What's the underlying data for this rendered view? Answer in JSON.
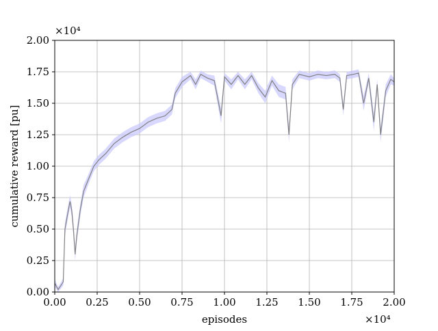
{
  "chart_data": {
    "type": "line",
    "xlabel": "episodes",
    "ylabel": "cumulative reward [pu]",
    "x_offset": "×10⁴",
    "y_offset": "×10⁴",
    "xlim": [
      0,
      20000
    ],
    "ylim": [
      0,
      20000
    ],
    "grid": true,
    "xticks": [
      {
        "value": 0,
        "label": "0.00"
      },
      {
        "value": 2500,
        "label": "0.25"
      },
      {
        "value": 5000,
        "label": "0.50"
      },
      {
        "value": 7500,
        "label": "0.75"
      },
      {
        "value": 10000,
        "label": "1.00"
      },
      {
        "value": 12500,
        "label": "1.25"
      },
      {
        "value": 15000,
        "label": "1.50"
      },
      {
        "value": 17500,
        "label": "1.75"
      },
      {
        "value": 20000,
        "label": "2.00"
      }
    ],
    "yticks": [
      {
        "value": 0,
        "label": "0.00"
      },
      {
        "value": 2500,
        "label": "0.25"
      },
      {
        "value": 5000,
        "label": "0.50"
      },
      {
        "value": 7500,
        "label": "0.75"
      },
      {
        "value": 10000,
        "label": "1.00"
      },
      {
        "value": 12500,
        "label": "1.25"
      },
      {
        "value": 15000,
        "label": "1.50"
      },
      {
        "value": 17500,
        "label": "1.75"
      },
      {
        "value": 20000,
        "label": "2.00"
      }
    ],
    "x": [
      0,
      200,
      500,
      600,
      800,
      900,
      1000,
      1100,
      1200,
      1300,
      1500,
      1700,
      2000,
      2300,
      2600,
      3000,
      3500,
      4000,
      4500,
      5000,
      5500,
      6000,
      6500,
      6900,
      7100,
      7500,
      8000,
      8300,
      8600,
      9000,
      9400,
      9800,
      10000,
      10400,
      10800,
      11200,
      11600,
      12000,
      12400,
      12800,
      13200,
      13600,
      13800,
      14000,
      14400,
      15000,
      15500,
      16000,
      16500,
      16800,
      17000,
      17200,
      17600,
      17900,
      18200,
      18500,
      18800,
      19000,
      19200,
      19500,
      19800,
      20000
    ],
    "series": [
      {
        "color": "#808080",
        "band_color": "#c8c8ff",
        "values": [
          700,
          200,
          800,
          5000,
          6500,
          7200,
          6500,
          5000,
          3000,
          4500,
          6500,
          8000,
          9000,
          10000,
          10500,
          11000,
          11800,
          12300,
          12700,
          13000,
          13500,
          13800,
          14000,
          14500,
          15800,
          16700,
          17200,
          16500,
          17300,
          17000,
          16800,
          14000,
          17100,
          16500,
          17200,
          16500,
          17200,
          16200,
          15500,
          16800,
          16000,
          15800,
          12500,
          16500,
          17300,
          17100,
          17300,
          17200,
          17300,
          17000,
          14500,
          17200,
          17300,
          17400,
          15000,
          17000,
          13500,
          16500,
          12500,
          16000,
          16900,
          16700
        ],
        "error": [
          300,
          200,
          300,
          500,
          500,
          500,
          500,
          500,
          500,
          500,
          500,
          500,
          400,
          400,
          400,
          400,
          400,
          400,
          400,
          400,
          400,
          400,
          400,
          400,
          400,
          400,
          300,
          400,
          300,
          300,
          400,
          600,
          300,
          400,
          300,
          400,
          300,
          400,
          500,
          400,
          500,
          500,
          600,
          400,
          300,
          300,
          300,
          300,
          300,
          300,
          500,
          300,
          300,
          300,
          600,
          400,
          700,
          400,
          600,
          500,
          400,
          300
        ]
      }
    ]
  }
}
